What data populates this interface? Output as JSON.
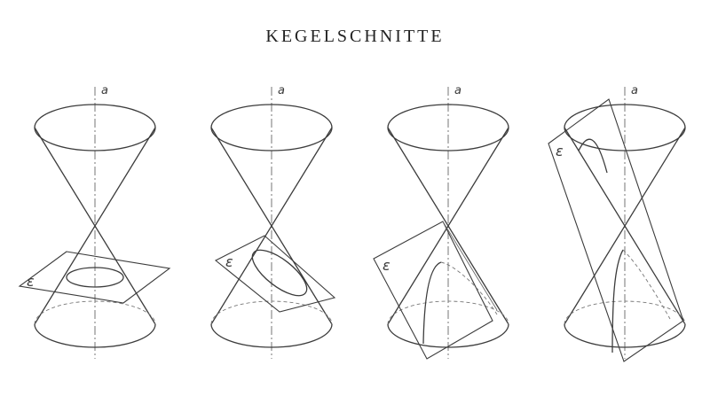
{
  "title": "KEGELSCHNITTE",
  "axis_label": "a",
  "plane_label": "ε",
  "figures": [
    {
      "section": "circle"
    },
    {
      "section": "ellipse"
    },
    {
      "section": "parabola"
    },
    {
      "section": "hyperbola"
    }
  ]
}
